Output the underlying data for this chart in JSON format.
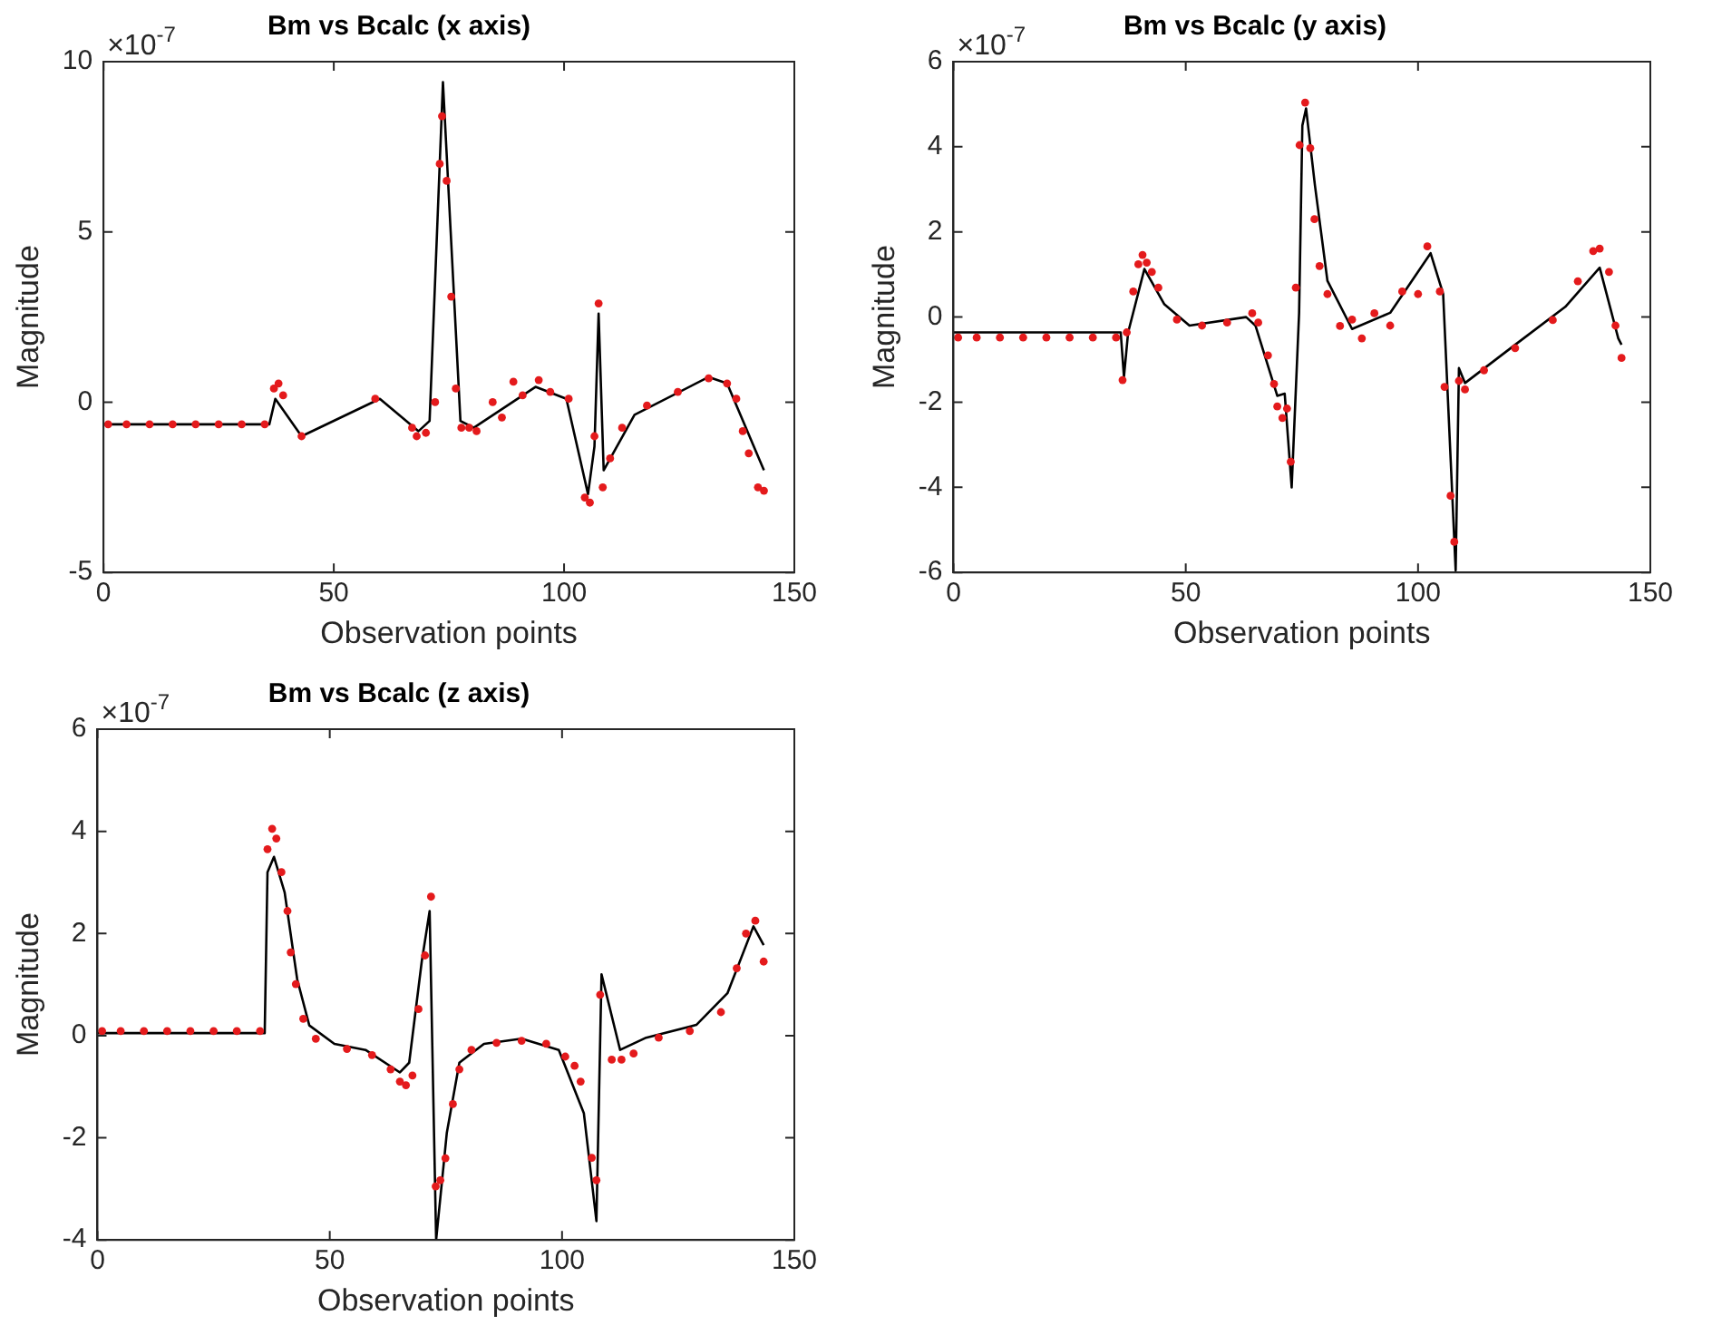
{
  "chart_data": [
    {
      "type": "scatter",
      "title": "Bm vs Bcalc (x axis)",
      "xlabel": "Observation points",
      "ylabel": "Magnitude",
      "annotations": [
        "×10$^{-7}$"
      ],
      "xlim": [
        0,
        150
      ],
      "xticks": [
        0,
        50,
        100,
        150
      ],
      "ylim": [
        -5,
        10
      ],
      "yticks": [
        -5,
        0,
        5,
        10
      ],
      "series": [
        {
          "type": "line",
          "color": "#000000",
          "marker": "none",
          "x": [
            0,
            36,
            37.3,
            43,
            60,
            68.4,
            70.8,
            73.7,
            77.5,
            80.4,
            93.8,
            100.5,
            105.2,
            106.6,
            107.5,
            108.6,
            115.3,
            131.4,
            135.4,
            143.4
          ],
          "values": [
            -0.65,
            -0.65,
            0.1,
            -1.0,
            0.1,
            -0.85,
            -0.55,
            9.4,
            -0.55,
            -0.75,
            0.45,
            0.1,
            -2.7,
            -1.3,
            2.6,
            -2.0,
            -0.37,
            0.74,
            0.55,
            -2.0
          ]
        },
        {
          "type": "scatter",
          "color": "#e41a1c",
          "marker": "circle",
          "x": [
            1,
            5,
            10,
            15,
            20,
            25,
            30,
            35,
            37,
            38,
            39,
            43,
            59,
            67,
            68,
            70,
            72,
            73,
            73.5,
            74.5,
            75.5,
            76.5,
            77.7,
            79.4,
            81,
            84.5,
            86.5,
            89,
            91,
            94.5,
            97,
            101,
            104.5,
            105.6,
            106.6,
            107.5,
            108.4,
            110,
            112.6,
            118,
            124.7,
            131.4,
            135.4,
            137.4,
            138.8,
            140.1,
            142.1,
            143.4
          ],
          "values": [
            -0.65,
            -0.65,
            -0.65,
            -0.65,
            -0.65,
            -0.65,
            -0.65,
            -0.65,
            0.4,
            0.55,
            0.2,
            -1.0,
            0.1,
            -0.75,
            -1.0,
            -0.9,
            0,
            7.0,
            8.4,
            6.5,
            3.1,
            0.4,
            -0.75,
            -0.75,
            -0.85,
            0,
            -0.45,
            0.6,
            0.2,
            0.65,
            0.3,
            0.1,
            -2.8,
            -2.95,
            -1.0,
            2.9,
            -2.5,
            -1.65,
            -0.75,
            -0.1,
            0.3,
            0.7,
            0.55,
            0.1,
            -0.85,
            -1.5,
            -2.5,
            -2.6
          ]
        }
      ]
    },
    {
      "type": "scatter",
      "title": "Bm vs Bcalc (y axis)",
      "xlabel": "Observation points",
      "ylabel": "Magnitude",
      "annotations": [
        "×10$^{-7}$"
      ],
      "xlim": [
        0,
        150
      ],
      "xticks": [
        0,
        50,
        100,
        150
      ],
      "ylim": [
        -6,
        6
      ],
      "yticks": [
        -6,
        -4,
        -2,
        0,
        2,
        4,
        6
      ],
      "series": [
        {
          "type": "line",
          "color": "#000000",
          "marker": "none",
          "x": [
            0,
            36,
            36.7,
            37.6,
            41.1,
            45.4,
            50.8,
            63,
            65,
            69.7,
            71.3,
            72.8,
            74.4,
            75.1,
            75.9,
            77.8,
            80.5,
            85.8,
            94,
            102.7,
            105.4,
            108.1,
            108.8,
            110.1,
            120.9,
            131.7,
            139.1,
            143.1,
            143.8
          ],
          "values": [
            -0.36,
            -0.36,
            -1.4,
            -0.36,
            1.13,
            0.3,
            -0.2,
            0,
            -0.2,
            -1.85,
            -1.8,
            -4.0,
            0.1,
            4.5,
            4.9,
            3.1,
            0.85,
            -0.28,
            0.1,
            1.5,
            0.55,
            -5.95,
            -1.2,
            -1.55,
            -0.65,
            0.24,
            1.16,
            -0.5,
            -0.65
          ]
        },
        {
          "type": "scatter",
          "color": "#e41a1c",
          "marker": "circle",
          "x": [
            1,
            5,
            10,
            15,
            20,
            25,
            30,
            35,
            36.4,
            37.3,
            38.7,
            39.8,
            40.7,
            41.6,
            42.7,
            44.1,
            48.1,
            53.5,
            58.9,
            64.3,
            65.6,
            67.7,
            69,
            69.7,
            70.8,
            71.8,
            72.6,
            73.7,
            74.5,
            75.7,
            76.8,
            77.7,
            78.8,
            80.5,
            83.2,
            85.8,
            87.9,
            90.6,
            94,
            96.6,
            100,
            102,
            104.7,
            105.7,
            107,
            107.8,
            108.8,
            110.1,
            114.2,
            120.9,
            129,
            134.4,
            137.7,
            139.1,
            141.1,
            142.5,
            143.8
          ],
          "values": [
            -0.48,
            -0.48,
            -0.48,
            -0.48,
            -0.48,
            -0.48,
            -0.48,
            -0.48,
            -1.48,
            -0.36,
            0.6,
            1.24,
            1.46,
            1.28,
            1.06,
            0.69,
            -0.06,
            -0.2,
            -0.13,
            0.09,
            -0.13,
            -0.9,
            -1.57,
            -2.1,
            -2.37,
            -2.15,
            -3.4,
            0.69,
            4.04,
            5.04,
            3.97,
            2.3,
            1.2,
            0.54,
            -0.21,
            -0.06,
            -0.5,
            0.09,
            -0.2,
            0.6,
            0.54,
            1.66,
            0.6,
            -1.64,
            -4.2,
            -5.28,
            -1.5,
            -1.7,
            -1.25,
            -0.73,
            -0.07,
            0.84,
            1.55,
            1.61,
            1.06,
            -0.2,
            -0.96
          ]
        }
      ]
    },
    {
      "type": "scatter",
      "title": "Bm vs Bcalc (z axis)",
      "xlabel": "Observation points",
      "ylabel": "Magnitude",
      "annotations": [
        "×10$^{-7}$"
      ],
      "xlim": [
        0,
        150
      ],
      "xticks": [
        0,
        50,
        100,
        150
      ],
      "ylim": [
        -4,
        6
      ],
      "yticks": [
        -4,
        -2,
        0,
        2,
        4,
        6
      ],
      "series": [
        {
          "type": "line",
          "color": "#000000",
          "marker": "none",
          "x": [
            0,
            36,
            36.6,
            38,
            40.3,
            43,
            45.6,
            51,
            57.7,
            65.1,
            67.1,
            69.8,
            71.5,
            72.9,
            75.2,
            77.9,
            83.2,
            91.3,
            99.3,
            104.7,
            107.4,
            108.5,
            112.5,
            118.1,
            128.9,
            135.6,
            141.2,
            143.4
          ],
          "values": [
            0.05,
            0.05,
            3.2,
            3.5,
            2.8,
            1.1,
            0.2,
            -0.16,
            -0.28,
            -0.72,
            -0.53,
            1.45,
            2.44,
            -4.0,
            -1.9,
            -0.53,
            -0.16,
            -0.06,
            -0.28,
            -1.52,
            -3.63,
            1.2,
            -0.28,
            -0.04,
            0.21,
            0.83,
            2.14,
            1.77
          ]
        },
        {
          "type": "scatter",
          "color": "#e41a1c",
          "marker": "circle",
          "x": [
            1,
            5,
            10,
            15,
            20,
            25,
            30,
            35,
            36.6,
            37.6,
            38.5,
            39.6,
            40.9,
            41.6,
            42.7,
            44.3,
            47,
            53.7,
            59.1,
            63.1,
            65.1,
            66.4,
            67.8,
            69.1,
            70.5,
            71.8,
            72.8,
            73.8,
            74.9,
            76.5,
            77.9,
            80.5,
            85.9,
            91.3,
            96.6,
            100.7,
            102.7,
            104,
            106.4,
            107.4,
            108.2,
            110.7,
            112.8,
            115.4,
            120.8,
            127.5,
            134.2,
            137.6,
            139.6,
            141.6,
            143.4
          ],
          "values": [
            0.09,
            0.09,
            0.09,
            0.09,
            0.09,
            0.09,
            0.09,
            0.09,
            3.65,
            4.05,
            3.86,
            3.2,
            2.44,
            1.63,
            1.01,
            0.33,
            -0.06,
            -0.26,
            -0.38,
            -0.66,
            -0.9,
            -0.97,
            -0.78,
            0.52,
            1.57,
            2.72,
            -2.95,
            -2.83,
            -2.4,
            -1.34,
            -0.66,
            -0.28,
            -0.14,
            -0.1,
            -0.16,
            -0.41,
            -0.59,
            -0.9,
            -2.39,
            -2.83,
            0.8,
            -0.47,
            -0.47,
            -0.35,
            -0.04,
            0.09,
            0.46,
            1.32,
            2.0,
            2.25,
            1.45
          ]
        }
      ]
    }
  ]
}
